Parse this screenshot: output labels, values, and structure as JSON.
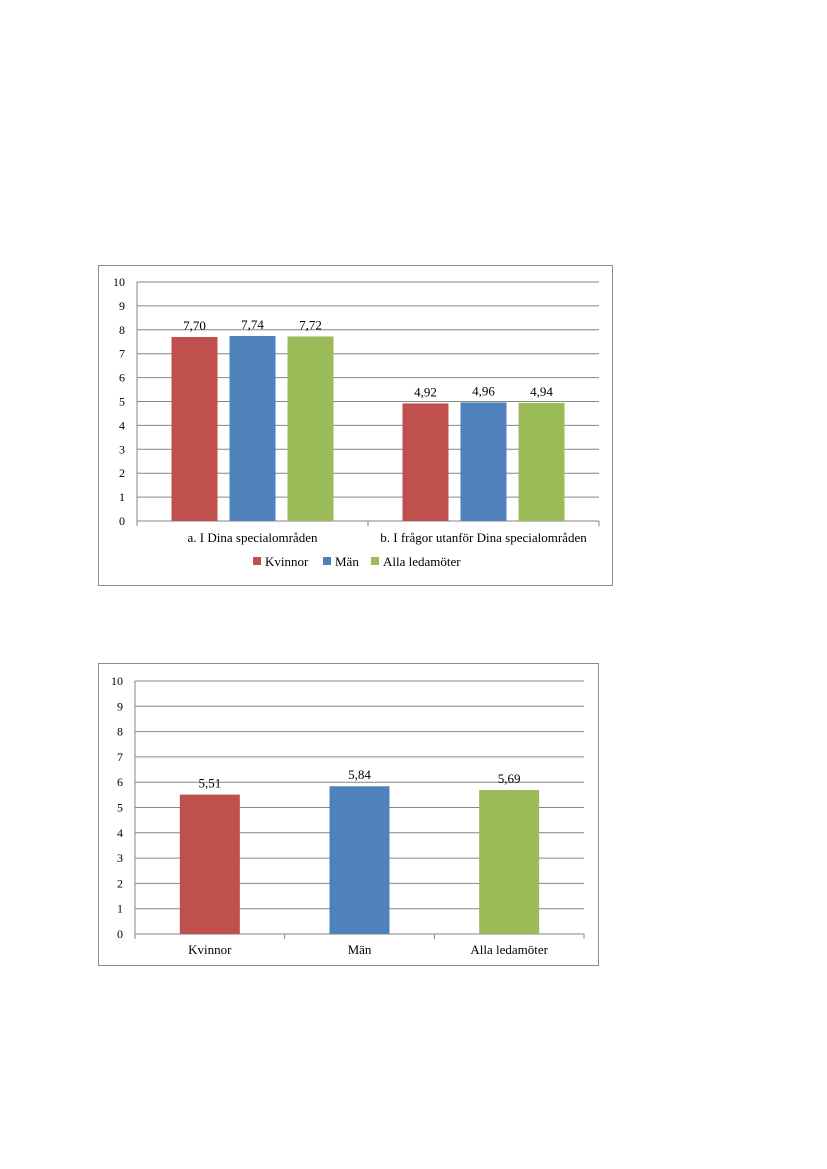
{
  "colors": {
    "kvinnor": "#c0504d",
    "man": "#4f81bd",
    "alla": "#9bbb59",
    "grid": "#868686",
    "axis": "#868686"
  },
  "chart_data": [
    {
      "type": "bar",
      "categories": [
        "a. I Dina specialområden",
        "b. I frågor utanför Dina specialområden"
      ],
      "series": [
        {
          "name": "Kvinnor",
          "values": [
            7.7,
            4.92
          ],
          "labels": [
            "7,70",
            "4,92"
          ]
        },
        {
          "name": "Män",
          "values": [
            7.74,
            4.96
          ],
          "labels": [
            "7,74",
            "4,96"
          ]
        },
        {
          "name": "Alla ledamöter",
          "values": [
            7.72,
            4.94
          ],
          "labels": [
            "7,72",
            "4,94"
          ]
        }
      ],
      "ylim": [
        0,
        10
      ],
      "yticks": [
        "0",
        "1",
        "2",
        "3",
        "4",
        "5",
        "6",
        "7",
        "8",
        "9",
        "10"
      ],
      "grid": true,
      "legend": "bottom"
    },
    {
      "type": "bar",
      "categories": [
        "Kvinnor",
        "Män",
        "Alla ledamöter"
      ],
      "values": [
        5.51,
        5.84,
        5.69
      ],
      "labels": [
        "5,51",
        "5,84",
        "5,69"
      ],
      "ylim": [
        0,
        10
      ],
      "yticks": [
        "0",
        "1",
        "2",
        "3",
        "4",
        "5",
        "6",
        "7",
        "8",
        "9",
        "10"
      ],
      "grid": true,
      "legend": "none"
    }
  ]
}
